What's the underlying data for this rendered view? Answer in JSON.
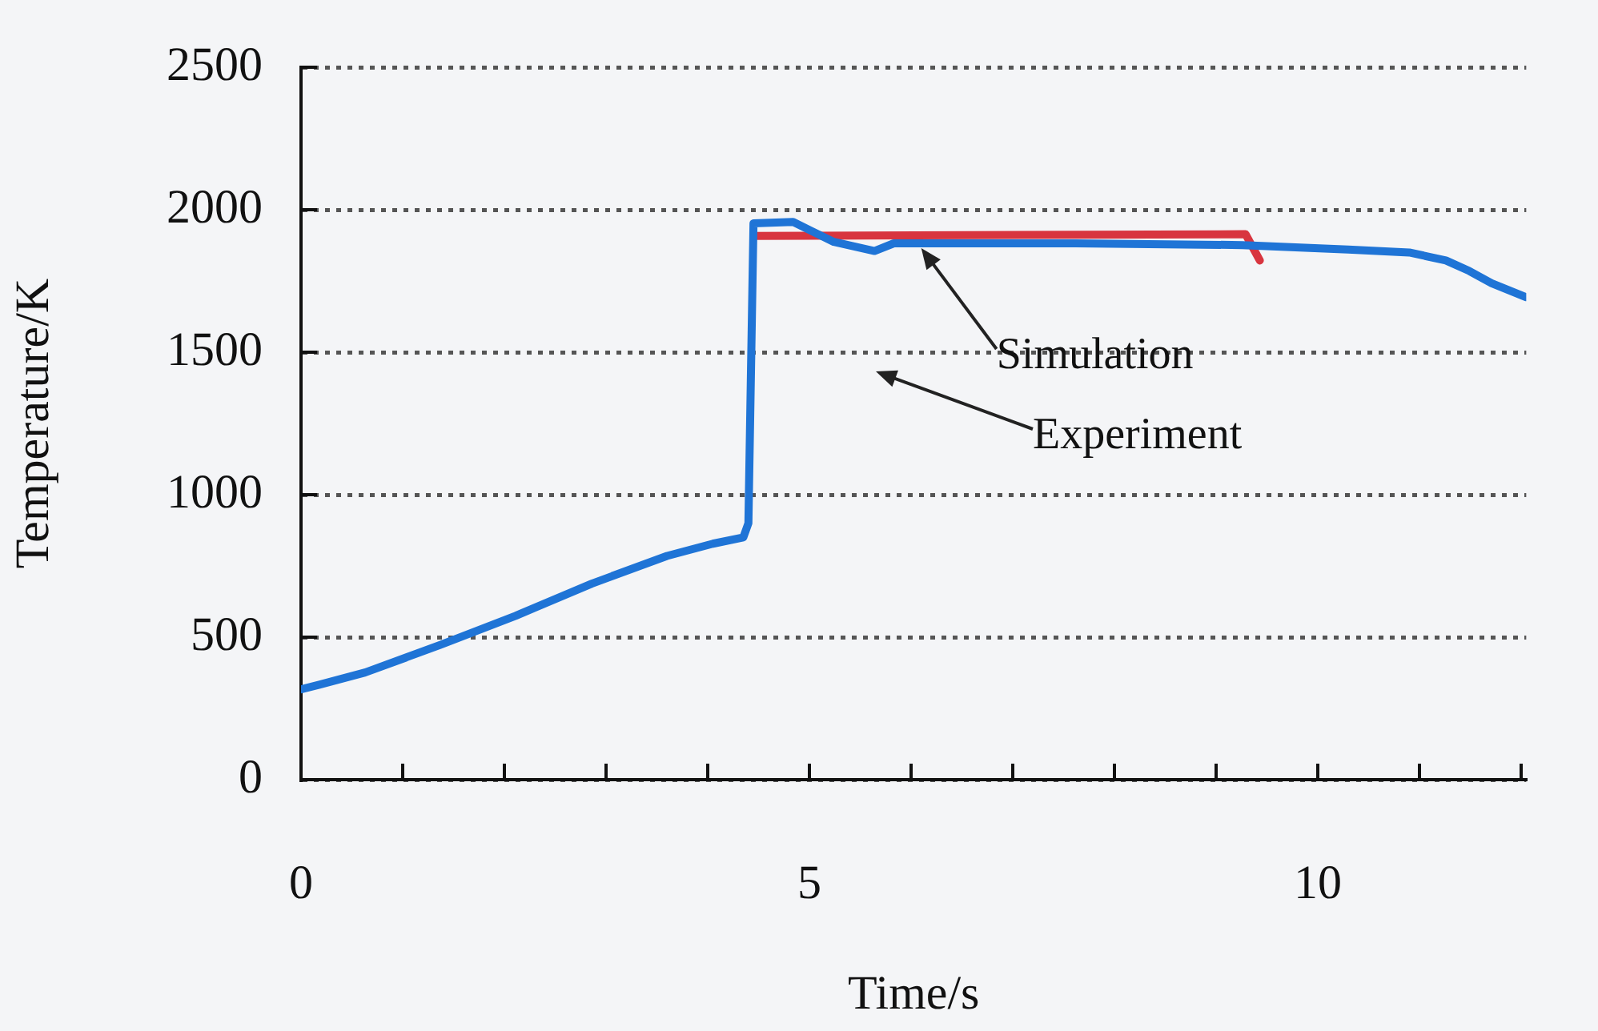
{
  "chart_data": {
    "type": "line",
    "xlabel": "Time/s",
    "ylabel": "Temperature/K",
    "xlim": [
      0,
      12.05
    ],
    "ylim": [
      0,
      2500
    ],
    "xticks": [
      0,
      {
        "value": 1,
        "label": null
      },
      {
        "value": 2,
        "label": null
      },
      {
        "value": 3,
        "label": null
      },
      {
        "value": 4,
        "label": null
      },
      5,
      {
        "value": 6,
        "label": null
      },
      {
        "value": 7,
        "label": null
      },
      {
        "value": 8,
        "label": null
      },
      {
        "value": 9,
        "label": null
      },
      10,
      {
        "value": 11,
        "label": null
      },
      {
        "value": 12,
        "label": null
      }
    ],
    "yticks": [
      0,
      500,
      1000,
      1500,
      2000,
      2500
    ],
    "grid": "y",
    "legend": false,
    "marker": "none",
    "line_style": "solid",
    "series": [
      {
        "color": "#1f74d6",
        "x": [
          0,
          0.18,
          0.63,
          1.37,
          2.11,
          2.86,
          3.6,
          4.05,
          4.35,
          4.4,
          4.45,
          4.84,
          5.24,
          5.64,
          5.83,
          7.62,
          9.26,
          10.3,
          10.9,
          11.26,
          11.49,
          11.71,
          12.05
        ],
        "values": [
          317,
          333,
          376,
          473,
          575,
          688,
          785,
          828,
          850,
          900,
          1952,
          1957,
          1887,
          1855,
          1882,
          1882,
          1876,
          1860,
          1850,
          1822,
          1785,
          1742,
          1693
        ]
      },
      {
        "color": "#d8353f",
        "x": [
          4.45,
          9.29,
          9.43
        ],
        "values": [
          1908,
          1914,
          1822
        ]
      }
    ],
    "annotations": [
      {
        "text": "Simulation",
        "x": 6.1,
        "y": 1865
      },
      "Experiment"
    ]
  }
}
